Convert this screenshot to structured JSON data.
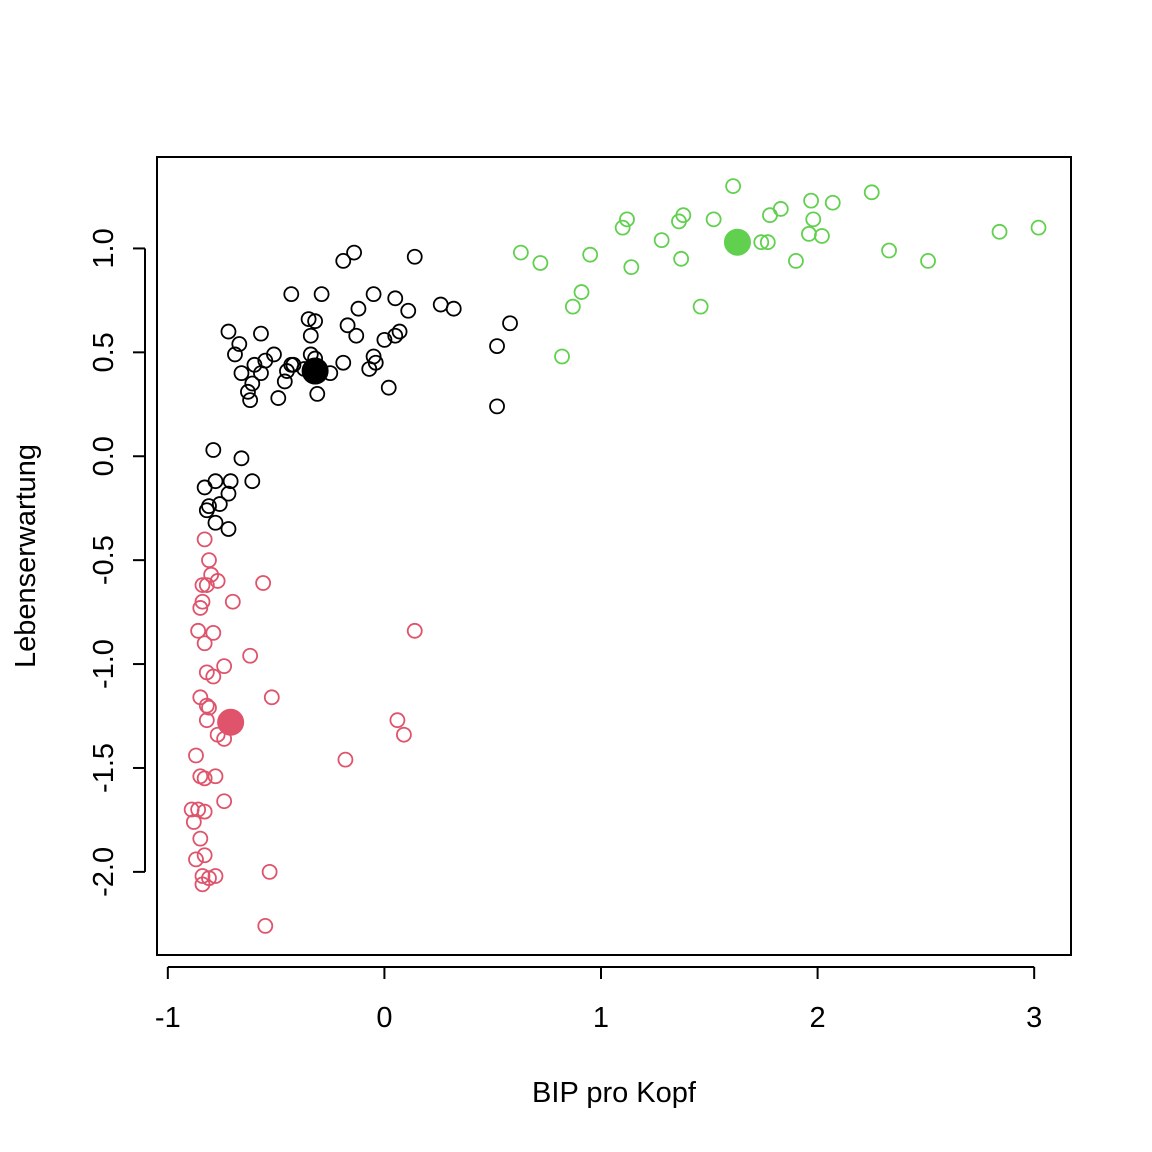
{
  "chart_data": {
    "type": "scatter",
    "title": "",
    "xlabel": "BIP pro Kopf",
    "ylabel": "Lebenserwartung",
    "xlim": [
      -1.05,
      3.17
    ],
    "ylim": [
      -2.4,
      1.44
    ],
    "x_ticks": [
      -1,
      0,
      1,
      2,
      3
    ],
    "x_tick_labels": [
      "-1",
      "0",
      "1",
      "2",
      "3"
    ],
    "y_ticks": [
      -2.0,
      -1.5,
      -1.0,
      -0.5,
      0.0,
      0.5,
      1.0
    ],
    "y_tick_labels": [
      "-2.0",
      "-1.5",
      "-1.0",
      "-0.5",
      "0.0",
      "0.5",
      "1.0"
    ],
    "grid": false,
    "legend": "none",
    "series": [
      {
        "color": "#000000",
        "marker": "open-circle",
        "points": [
          [
            -0.14,
            0.98
          ],
          [
            -0.19,
            0.94
          ],
          [
            0.14,
            0.96
          ],
          [
            -0.43,
            0.78
          ],
          [
            -0.29,
            0.78
          ],
          [
            -0.05,
            0.78
          ],
          [
            0.05,
            0.76
          ],
          [
            -0.12,
            0.71
          ],
          [
            0.11,
            0.7
          ],
          [
            0.26,
            0.73
          ],
          [
            0.32,
            0.71
          ],
          [
            0.58,
            0.64
          ],
          [
            -0.72,
            0.6
          ],
          [
            -0.57,
            0.59
          ],
          [
            -0.35,
            0.66
          ],
          [
            -0.32,
            0.65
          ],
          [
            -0.17,
            0.63
          ],
          [
            -0.13,
            0.58
          ],
          [
            -0.34,
            0.58
          ],
          [
            0.07,
            0.6
          ],
          [
            0.0,
            0.56
          ],
          [
            0.05,
            0.58
          ],
          [
            -0.67,
            0.54
          ],
          [
            -0.69,
            0.49
          ],
          [
            -0.51,
            0.49
          ],
          [
            -0.55,
            0.46
          ],
          [
            -0.6,
            0.44
          ],
          [
            -0.34,
            0.49
          ],
          [
            -0.32,
            0.47
          ],
          [
            -0.05,
            0.48
          ],
          [
            -0.04,
            0.45
          ],
          [
            -0.19,
            0.45
          ],
          [
            -0.43,
            0.44
          ],
          [
            -0.42,
            0.44
          ],
          [
            -0.45,
            0.41
          ],
          [
            -0.37,
            0.42
          ],
          [
            -0.25,
            0.4
          ],
          [
            -0.66,
            0.4
          ],
          [
            -0.57,
            0.4
          ],
          [
            -0.07,
            0.42
          ],
          [
            -0.61,
            0.35
          ],
          [
            -0.46,
            0.36
          ],
          [
            -0.63,
            0.31
          ],
          [
            -0.62,
            0.27
          ],
          [
            -0.49,
            0.28
          ],
          [
            -0.31,
            0.3
          ],
          [
            0.02,
            0.33
          ],
          [
            0.52,
            0.53
          ],
          [
            0.52,
            0.24
          ],
          [
            -0.79,
            0.03
          ],
          [
            -0.66,
            -0.01
          ],
          [
            -0.61,
            -0.12
          ],
          [
            -0.78,
            -0.12
          ],
          [
            -0.71,
            -0.12
          ],
          [
            -0.83,
            -0.15
          ],
          [
            -0.72,
            -0.18
          ],
          [
            -0.81,
            -0.24
          ],
          [
            -0.76,
            -0.23
          ],
          [
            -0.82,
            -0.26
          ],
          [
            -0.78,
            -0.32
          ],
          [
            -0.72,
            -0.35
          ]
        ]
      },
      {
        "color": "#df536b",
        "marker": "open-circle",
        "points": [
          [
            -0.83,
            -0.4
          ],
          [
            -0.81,
            -0.5
          ],
          [
            -0.8,
            -0.57
          ],
          [
            -0.77,
            -0.6
          ],
          [
            -0.84,
            -0.62
          ],
          [
            -0.82,
            -0.62
          ],
          [
            -0.56,
            -0.61
          ],
          [
            -0.7,
            -0.7
          ],
          [
            -0.84,
            -0.7
          ],
          [
            -0.85,
            -0.73
          ],
          [
            -0.86,
            -0.84
          ],
          [
            -0.79,
            -0.85
          ],
          [
            0.14,
            -0.84
          ],
          [
            -0.83,
            -0.9
          ],
          [
            -0.62,
            -0.96
          ],
          [
            -0.74,
            -1.01
          ],
          [
            -0.82,
            -1.04
          ],
          [
            -0.79,
            -1.06
          ],
          [
            -0.85,
            -1.16
          ],
          [
            -0.52,
            -1.16
          ],
          [
            -0.82,
            -1.2
          ],
          [
            -0.81,
            -1.21
          ],
          [
            -0.82,
            -1.27
          ],
          [
            0.06,
            -1.27
          ],
          [
            0.09,
            -1.34
          ],
          [
            -0.77,
            -1.34
          ],
          [
            -0.74,
            -1.36
          ],
          [
            -0.87,
            -1.44
          ],
          [
            -0.18,
            -1.46
          ],
          [
            -0.85,
            -1.54
          ],
          [
            -0.83,
            -1.55
          ],
          [
            -0.78,
            -1.54
          ],
          [
            -0.74,
            -1.66
          ],
          [
            -0.89,
            -1.7
          ],
          [
            -0.86,
            -1.7
          ],
          [
            -0.83,
            -1.71
          ],
          [
            -0.88,
            -1.76
          ],
          [
            -0.85,
            -1.84
          ],
          [
            -0.83,
            -1.92
          ],
          [
            -0.87,
            -1.94
          ],
          [
            -0.84,
            -2.02
          ],
          [
            -0.81,
            -2.03
          ],
          [
            -0.78,
            -2.02
          ],
          [
            -0.84,
            -2.06
          ],
          [
            -0.53,
            -2.0
          ],
          [
            -0.55,
            -2.26
          ]
        ]
      },
      {
        "color": "#61d04f",
        "marker": "open-circle",
        "points": [
          [
            1.61,
            1.3
          ],
          [
            2.25,
            1.27
          ],
          [
            1.97,
            1.23
          ],
          [
            2.07,
            1.22
          ],
          [
            1.83,
            1.19
          ],
          [
            1.12,
            1.14
          ],
          [
            1.38,
            1.16
          ],
          [
            1.36,
            1.13
          ],
          [
            1.52,
            1.14
          ],
          [
            1.78,
            1.16
          ],
          [
            1.98,
            1.14
          ],
          [
            1.1,
            1.1
          ],
          [
            3.02,
            1.1
          ],
          [
            2.84,
            1.08
          ],
          [
            1.96,
            1.07
          ],
          [
            2.02,
            1.06
          ],
          [
            1.28,
            1.04
          ],
          [
            1.74,
            1.03
          ],
          [
            1.77,
            1.03
          ],
          [
            0.63,
            0.98
          ],
          [
            0.95,
            0.97
          ],
          [
            2.33,
            0.99
          ],
          [
            1.37,
            0.95
          ],
          [
            1.9,
            0.94
          ],
          [
            2.51,
            0.94
          ],
          [
            0.72,
            0.93
          ],
          [
            1.14,
            0.91
          ],
          [
            0.91,
            0.79
          ],
          [
            0.87,
            0.72
          ],
          [
            1.46,
            0.72
          ],
          [
            0.82,
            0.48
          ]
        ]
      }
    ],
    "centroids": [
      {
        "x": -0.32,
        "y": 0.41,
        "color": "#000000"
      },
      {
        "x": -0.71,
        "y": -1.28,
        "color": "#df536b"
      },
      {
        "x": 1.63,
        "y": 1.03,
        "color": "#61d04f"
      }
    ]
  }
}
